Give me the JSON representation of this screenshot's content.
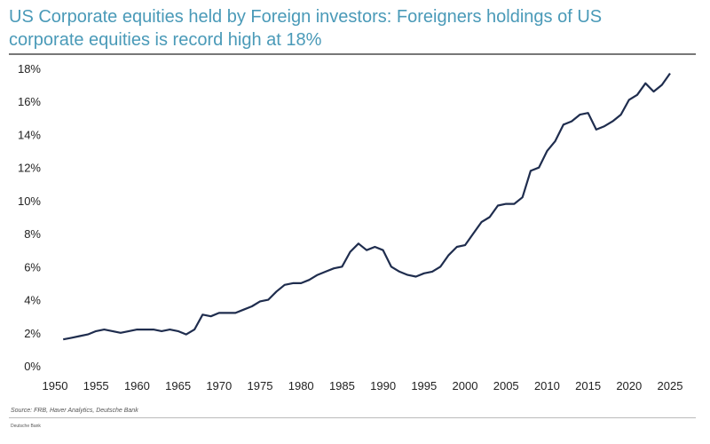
{
  "chart_data": {
    "type": "line",
    "title": "US Corporate equities held by Foreign investors: Foreigners holdings of US corporate equities is record high at 18%",
    "xlabel": "",
    "ylabel": "",
    "xlim": [
      1950,
      2025
    ],
    "ylim": [
      0,
      18
    ],
    "x_ticks": [
      "1950",
      "1955",
      "1960",
      "1965",
      "1970",
      "1975",
      "1980",
      "1985",
      "1990",
      "1995",
      "2000",
      "2005",
      "2010",
      "2015",
      "2020",
      "2025"
    ],
    "y_ticks": [
      "0%",
      "2%",
      "4%",
      "6%",
      "8%",
      "10%",
      "12%",
      "14%",
      "16%",
      "18%"
    ],
    "grid": false,
    "line_color": "#1f2d4e",
    "series": [
      {
        "x": [
          1951,
          1952,
          1953,
          1954,
          1955,
          1956,
          1957,
          1958,
          1959,
          1960,
          1962,
          1963,
          1964,
          1965,
          1966,
          1967,
          1968,
          1969,
          1970,
          1972,
          1973,
          1974,
          1975,
          1976,
          1977,
          1978,
          1979,
          1980,
          1981,
          1982,
          1983,
          1984,
          1985,
          1986,
          1987,
          1988,
          1989,
          1990,
          1991,
          1992,
          1993,
          1994,
          1995,
          1996,
          1997,
          1998,
          1999,
          2000,
          2001,
          2002,
          2003,
          2004,
          2005,
          2006,
          2007,
          2008,
          2009,
          2010,
          2011,
          2012,
          2013,
          2014,
          2015,
          2016,
          2017,
          2018,
          2019,
          2020,
          2021,
          2022,
          2023,
          2024,
          2025
        ],
        "y": [
          1.6,
          1.7,
          1.8,
          1.9,
          2.1,
          2.2,
          2.1,
          2.0,
          2.1,
          2.2,
          2.2,
          2.1,
          2.2,
          2.1,
          1.9,
          2.2,
          3.1,
          3.0,
          3.2,
          3.2,
          3.4,
          3.6,
          3.9,
          4.0,
          4.5,
          4.9,
          5.0,
          5.0,
          5.2,
          5.5,
          5.7,
          5.9,
          6.0,
          6.9,
          7.4,
          7.0,
          7.2,
          7.0,
          6.0,
          5.7,
          5.5,
          5.4,
          5.6,
          5.7,
          6.0,
          6.7,
          7.2,
          7.3,
          8.0,
          8.7,
          9.0,
          9.7,
          9.8,
          9.8,
          10.2,
          11.8,
          12.0,
          13.0,
          13.6,
          14.6,
          14.8,
          15.2,
          15.3,
          14.3,
          14.5,
          14.8,
          15.2,
          16.1,
          16.4,
          17.1,
          16.6,
          17.0,
          17.7
        ]
      }
    ],
    "source": "Source: FRB, Haver Analytics, Deutsche Bank",
    "footer": "Deutsche Bank"
  }
}
